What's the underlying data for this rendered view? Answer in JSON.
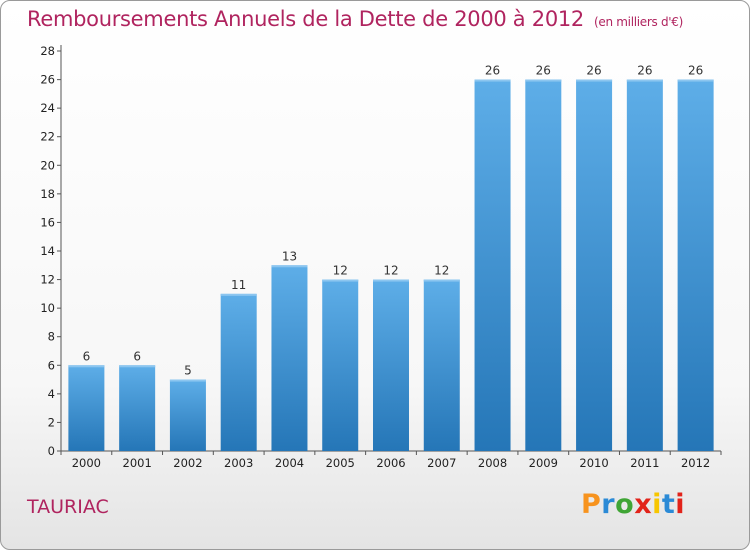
{
  "header": {
    "title": "Remboursements Annuels de la Dette de 2000 à 2012",
    "unit": "(en milliers d'€)"
  },
  "footer": {
    "commune": "TAURIAC",
    "logo_text": "Proxiti"
  },
  "colors": {
    "title": "#b0245f",
    "bar_top": "#5eaee8",
    "bar_bottom": "#2576b7",
    "logo_letters": [
      "#f7931e",
      "#2b8ad6",
      "#3fa535",
      "#e2231a",
      "#f7c600",
      "#2b8ad6",
      "#e2231a"
    ]
  },
  "chart_data": {
    "type": "bar",
    "title": "Remboursements Annuels de la Dette de 2000 à 2012",
    "subtitle": "(en milliers d'€)",
    "categories": [
      "2000",
      "2001",
      "2002",
      "2003",
      "2004",
      "2005",
      "2006",
      "2007",
      "2008",
      "2009",
      "2010",
      "2011",
      "2012"
    ],
    "values": [
      6,
      6,
      5,
      11,
      13,
      12,
      12,
      12,
      26,
      26,
      26,
      26,
      26
    ],
    "data_labels": [
      "6",
      "6",
      "5",
      "11",
      "13",
      "12",
      "12",
      "12",
      "26",
      "26",
      "26",
      "26",
      "26"
    ],
    "ylim": [
      0,
      28
    ],
    "yticks": [
      0,
      2,
      4,
      6,
      8,
      10,
      12,
      14,
      16,
      18,
      20,
      22,
      24,
      26,
      28
    ],
    "grid": false,
    "xlabel": "",
    "ylabel": ""
  }
}
